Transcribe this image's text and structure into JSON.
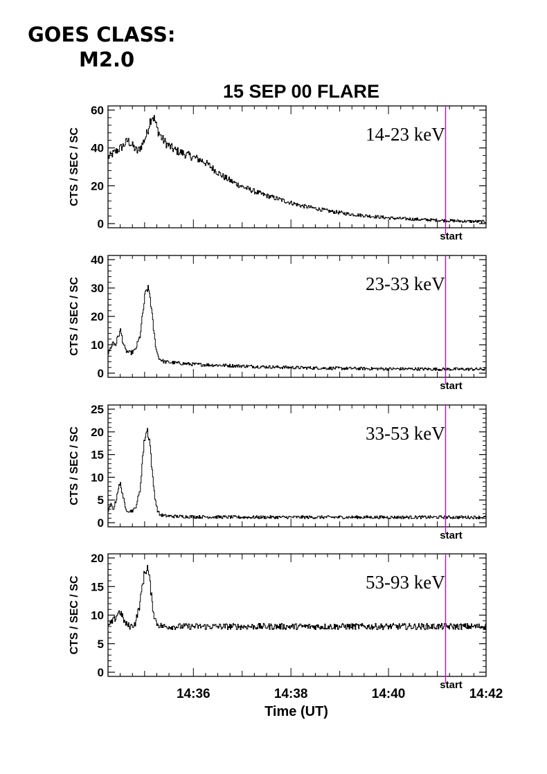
{
  "header": {
    "goes_line1": "GOES CLASS:",
    "goes_line2": "M2.0"
  },
  "chart_data": {
    "type": "line",
    "title": "15 SEP 00 FLARE",
    "xlabel": "Time (UT)",
    "x_unit": "minutes after 14:34",
    "xlim": [
      0.25,
      8.0
    ],
    "x_ticks": [
      2,
      4,
      6,
      8
    ],
    "x_tick_labels": [
      "14:36",
      "14:38",
      "14:40",
      "14:42"
    ],
    "marker": {
      "label": "start",
      "x": 7.17,
      "color": "#cc00cc"
    },
    "grid": false,
    "panels": [
      {
        "name": "14-23 keV",
        "ylabel": "CTS / SEC / SC",
        "ylim": [
          0,
          60
        ],
        "y_ticks": [
          0,
          20,
          40,
          60
        ],
        "x": [
          0.25,
          0.35,
          0.45,
          0.55,
          0.65,
          0.75,
          0.85,
          0.95,
          1.05,
          1.1,
          1.15,
          1.2,
          1.25,
          1.35,
          1.45,
          1.6,
          1.8,
          2.0,
          2.2,
          2.4,
          2.6,
          2.8,
          3.0,
          3.2,
          3.4,
          3.6,
          3.8,
          4.0,
          4.2,
          4.4,
          4.6,
          4.8,
          5.0,
          5.2,
          5.4,
          5.6,
          5.8,
          6.0,
          6.2,
          6.4,
          6.6,
          6.8,
          7.0,
          7.2,
          7.4,
          7.6,
          7.8,
          8.0
        ],
        "values": [
          35,
          37,
          39,
          41,
          44,
          41,
          38,
          42,
          48,
          54,
          57,
          55,
          50,
          45,
          42,
          39,
          37,
          35,
          33,
          29,
          25,
          22,
          19.5,
          17.5,
          15.5,
          14,
          12.5,
          11,
          9.5,
          8.5,
          7.5,
          6.5,
          5.8,
          5,
          4.5,
          4,
          3.5,
          3,
          2.7,
          2.5,
          2.2,
          2,
          1.8,
          1.6,
          1.4,
          1.2,
          1.1,
          1
        ]
      },
      {
        "name": "23-33 keV",
        "ylabel": "CTS / SEC / SC",
        "ylim": [
          0,
          40
        ],
        "y_ticks": [
          0,
          10,
          20,
          30,
          40
        ],
        "x": [
          0.25,
          0.3,
          0.35,
          0.4,
          0.45,
          0.5,
          0.55,
          0.6,
          0.7,
          0.8,
          0.9,
          0.95,
          1.0,
          1.05,
          1.1,
          1.15,
          1.2,
          1.25,
          1.3,
          1.35,
          1.4,
          1.5,
          1.7,
          2.0,
          2.5,
          3.0,
          3.5,
          4.0,
          4.5,
          5.0,
          5.5,
          6.0,
          6.5,
          7.0,
          7.5,
          8.0
        ],
        "values": [
          7,
          9,
          11,
          10,
          13,
          15,
          11,
          8,
          7,
          8,
          13,
          20,
          27,
          30,
          28,
          20,
          12,
          7,
          5,
          4.5,
          4,
          3.8,
          3.5,
          3.1,
          2.8,
          2.5,
          2.2,
          2,
          1.8,
          1.7,
          1.6,
          1.5,
          1.5,
          1.4,
          1.4,
          1.4
        ]
      },
      {
        "name": "33-53 keV",
        "ylabel": "CTS / SEC / SC",
        "ylim": [
          0,
          25
        ],
        "y_ticks": [
          0,
          5,
          10,
          15,
          20,
          25
        ],
        "x": [
          0.25,
          0.3,
          0.35,
          0.4,
          0.45,
          0.5,
          0.55,
          0.6,
          0.7,
          0.8,
          0.9,
          0.95,
          1.0,
          1.05,
          1.1,
          1.15,
          1.2,
          1.25,
          1.3,
          1.4,
          1.6,
          2.0,
          3.0,
          4.0,
          5.0,
          6.0,
          7.0,
          8.0
        ],
        "values": [
          2.5,
          4,
          3,
          4.5,
          7.5,
          8.5,
          6,
          3,
          2.5,
          3,
          7,
          14,
          19,
          20.5,
          18,
          11,
          6,
          3,
          1.8,
          1.5,
          1.4,
          1.3,
          1.2,
          1.2,
          1.2,
          1.2,
          1.2,
          1.2
        ]
      },
      {
        "name": "53-93 keV",
        "ylabel": "CTS / SEC / SC",
        "ylim": [
          0,
          20
        ],
        "y_ticks": [
          0,
          5,
          10,
          15,
          20
        ],
        "x": [
          0.25,
          0.3,
          0.35,
          0.4,
          0.45,
          0.5,
          0.55,
          0.6,
          0.7,
          0.8,
          0.9,
          0.95,
          1.0,
          1.05,
          1.1,
          1.15,
          1.2,
          1.25,
          1.3,
          1.4,
          1.6,
          2.0,
          3.0,
          4.0,
          5.0,
          6.0,
          7.0,
          8.0
        ],
        "values": [
          8,
          8.5,
          9,
          9.5,
          10.5,
          10.5,
          9.5,
          8.5,
          8,
          8.5,
          12,
          15.5,
          17.5,
          18.5,
          16,
          12,
          9.5,
          8.5,
          8.2,
          8,
          8,
          8,
          8,
          8,
          8,
          8,
          8,
          8
        ]
      }
    ]
  }
}
